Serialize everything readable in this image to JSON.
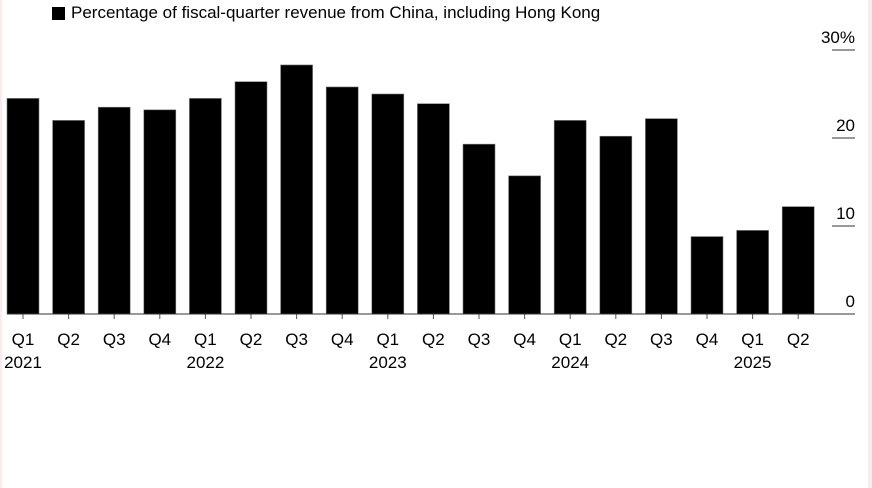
{
  "chart_data": {
    "type": "bar",
    "title": "",
    "legend": [
      {
        "label": "Percentage of fiscal-quarter revenue from China, including Hong Kong",
        "color": "#000000"
      }
    ],
    "legend_position": "top-left",
    "categories": [
      "Q1",
      "Q2",
      "Q3",
      "Q4",
      "Q1",
      "Q2",
      "Q3",
      "Q4",
      "Q1",
      "Q2",
      "Q3",
      "Q4",
      "Q1",
      "Q2",
      "Q3",
      "Q4",
      "Q1",
      "Q2"
    ],
    "years": [
      {
        "label": "2021",
        "index": 0
      },
      {
        "label": "2022",
        "index": 4
      },
      {
        "label": "2023",
        "index": 8
      },
      {
        "label": "2024",
        "index": 12
      },
      {
        "label": "2025",
        "index": 16
      }
    ],
    "values": [
      24.5,
      22.0,
      23.5,
      23.2,
      24.5,
      26.4,
      28.3,
      25.8,
      25.0,
      23.9,
      19.3,
      15.7,
      22.0,
      20.2,
      22.2,
      8.8,
      9.5,
      12.2
    ],
    "xlabel": "",
    "ylabel": "",
    "ylim": [
      0,
      30
    ],
    "yticks": [
      0,
      10,
      20,
      30
    ],
    "ytick_labels": [
      "0",
      "10",
      "20",
      "30%"
    ],
    "y_axis_position": "right",
    "grid": false,
    "bar_color": "#000000"
  }
}
